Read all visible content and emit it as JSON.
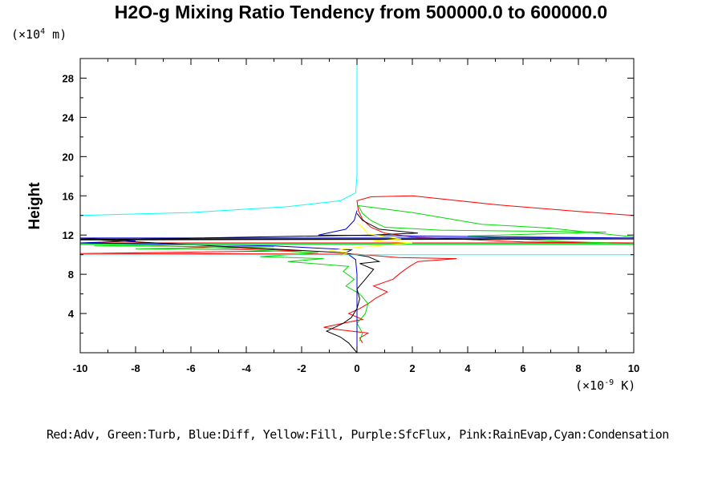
{
  "chart_data": {
    "type": "line",
    "title": "H2O-g Mixing Ratio Tendency from 500000.0 to 600000.0",
    "ylabel": "Height",
    "xlabel": "",
    "y_unit_prefix": "(×10",
    "y_unit_exp": "4",
    "y_unit_suffix": " m)",
    "x_unit_prefix": "(×10",
    "x_unit_exp": "-9",
    "x_unit_suffix": " K)",
    "xlim": [
      -10,
      10
    ],
    "ylim": [
      0,
      30
    ],
    "xticks": [
      -10,
      -8,
      -6,
      -4,
      -2,
      0,
      2,
      4,
      6,
      8,
      10
    ],
    "yticks": [
      4,
      8,
      12,
      16,
      20,
      24,
      28
    ],
    "grid": false,
    "legend_text": "Red:Adv, Green:Turb, Blue:Diff, Yellow:Fill, Purple:SfcFlux, Pink:RainEvap,Cyan:Condensation",
    "series": [
      {
        "color": "#ff0000",
        "points": [
          [
            0.2,
            1.0
          ],
          [
            0.1,
            1.5
          ],
          [
            0.4,
            2.0
          ],
          [
            -0.8,
            2.4
          ],
          [
            -1.2,
            2.6
          ],
          [
            -0.5,
            3.0
          ],
          [
            0.2,
            3.4
          ],
          [
            -0.3,
            4.0
          ],
          [
            0.1,
            4.5
          ],
          [
            0.4,
            5.0
          ],
          [
            0.7,
            5.6
          ],
          [
            1.1,
            6.2
          ],
          [
            0.6,
            6.8
          ],
          [
            1.3,
            7.5
          ],
          [
            1.6,
            8.2
          ],
          [
            1.9,
            8.8
          ],
          [
            2.2,
            9.3
          ],
          [
            3.6,
            9.6
          ],
          [
            1.5,
            9.7
          ],
          [
            0,
            10.05
          ],
          [
            -6,
            10.1
          ],
          [
            -10,
            10.12
          ],
          [
            -2,
            10.4
          ],
          [
            -10,
            11.2
          ],
          [
            10,
            11.2
          ],
          [
            6,
            11.3
          ],
          [
            2,
            11.8
          ],
          [
            1,
            12.2
          ],
          [
            0.5,
            12.8
          ],
          [
            0.2,
            13.6
          ],
          [
            0.05,
            14.5
          ],
          [
            0,
            15.5
          ],
          [
            0.5,
            15.9
          ],
          [
            2,
            16.0
          ],
          [
            5,
            15.1
          ],
          [
            8,
            14.4
          ],
          [
            10,
            14.0
          ]
        ]
      },
      {
        "color": "#00dd00",
        "points": [
          [
            0.1,
            1.2
          ],
          [
            0.2,
            2.0
          ],
          [
            0.0,
            3.0
          ],
          [
            0.3,
            4.0
          ],
          [
            0.4,
            5.0
          ],
          [
            0.1,
            6.0
          ],
          [
            -0.4,
            6.8
          ],
          [
            -0.1,
            7.5
          ],
          [
            -0.5,
            8.3
          ],
          [
            -0.3,
            8.8
          ],
          [
            -2.5,
            9.3
          ],
          [
            -1.2,
            9.6
          ],
          [
            -3.5,
            9.8
          ],
          [
            -1.4,
            10.2
          ],
          [
            -4.0,
            10.5
          ],
          [
            -8.0,
            10.6
          ],
          [
            -3.0,
            10.8
          ],
          [
            -9.5,
            10.9
          ],
          [
            -6.0,
            11.0
          ],
          [
            -10,
            11.1
          ],
          [
            10,
            11.1
          ],
          [
            7.0,
            11.4
          ],
          [
            4.0,
            11.9
          ],
          [
            9.0,
            12.3
          ],
          [
            6.0,
            12.4
          ],
          [
            3.0,
            12.5
          ],
          [
            1.0,
            12.8
          ],
          [
            0.5,
            13.5
          ],
          [
            0.2,
            14.2
          ],
          [
            0.05,
            15.0
          ],
          [
            2.0,
            14.3
          ],
          [
            4.5,
            13.1
          ],
          [
            7.0,
            12.7
          ],
          [
            10,
            11.8
          ]
        ]
      },
      {
        "color": "#0000cc",
        "points": [
          [
            0.0,
            0.0
          ],
          [
            0.0,
            2.0
          ],
          [
            0.0,
            4.0
          ],
          [
            0.0,
            6.0
          ],
          [
            0.0,
            8.0
          ],
          [
            -0.05,
            9.5
          ],
          [
            -0.4,
            10.2
          ],
          [
            -0.2,
            10.5
          ],
          [
            -3.0,
            10.9
          ],
          [
            -10,
            11.2
          ],
          [
            -8.0,
            11.4
          ],
          [
            -10,
            11.7
          ],
          [
            10,
            11.7
          ],
          [
            -1.4,
            12.0
          ],
          [
            -0.4,
            12.6
          ],
          [
            -0.1,
            13.5
          ],
          [
            0.0,
            14.5
          ]
        ]
      },
      {
        "color": "#000000",
        "points": [
          [
            0.0,
            0.0
          ],
          [
            -0.3,
            1.0
          ],
          [
            -0.6,
            1.6
          ],
          [
            -1.1,
            2.2
          ],
          [
            -0.5,
            3.0
          ],
          [
            -0.2,
            3.6
          ],
          [
            0.0,
            4.5
          ],
          [
            0.1,
            5.5
          ],
          [
            0.0,
            6.5
          ],
          [
            0.3,
            7.5
          ],
          [
            0.6,
            8.5
          ],
          [
            0.1,
            9.1
          ],
          [
            0.8,
            9.3
          ],
          [
            0.4,
            9.8
          ],
          [
            -0.5,
            10.2
          ],
          [
            -10,
            11.6
          ],
          [
            10,
            11.6
          ],
          [
            -10,
            11.5
          ],
          [
            0.5,
            12.0
          ],
          [
            2.2,
            12.2
          ],
          [
            0.8,
            12.6
          ],
          [
            0.2,
            13.5
          ],
          [
            0.0,
            14.2
          ]
        ]
      },
      {
        "color": "#ffff00",
        "points": [
          [
            -0.6,
            9.9
          ],
          [
            -0.3,
            10.2
          ],
          [
            -1.0,
            10.4
          ],
          [
            0.2,
            10.8
          ],
          [
            2.0,
            11.2
          ],
          [
            0.6,
            11.4
          ],
          [
            1.6,
            11.6
          ],
          [
            0.4,
            12.1
          ],
          [
            0.2,
            12.8
          ],
          [
            0.0,
            13.2
          ]
        ]
      },
      {
        "color": "#00ffff",
        "points": [
          [
            0.0,
            30.0
          ],
          [
            0.0,
            18.0
          ],
          [
            -0.05,
            16.3
          ],
          [
            -0.6,
            15.5
          ],
          [
            -2.5,
            14.9
          ],
          [
            -6.0,
            14.3
          ],
          [
            -10,
            14.0
          ],
          [
            null,
            null
          ],
          [
            -10,
            11.0
          ],
          [
            10,
            11.0
          ],
          [
            null,
            null
          ],
          [
            -10,
            10.0
          ],
          [
            10,
            10.0
          ]
        ]
      }
    ]
  }
}
